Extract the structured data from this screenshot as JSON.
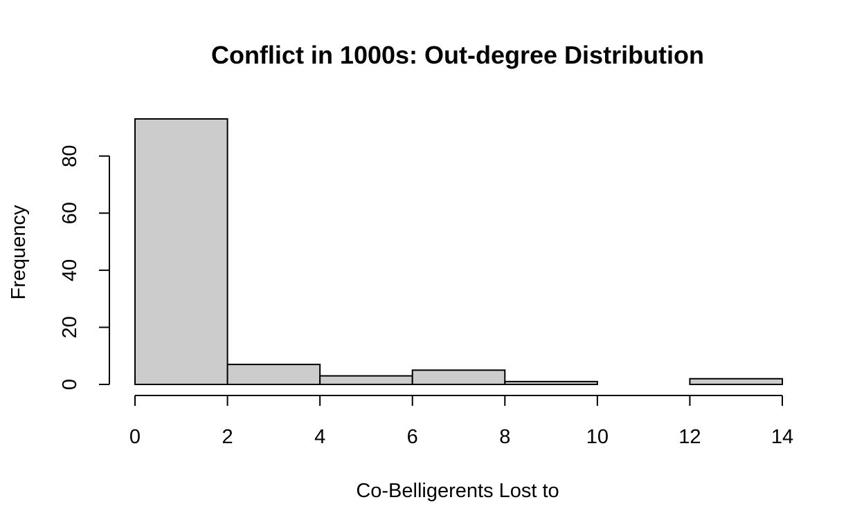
{
  "chart_data": {
    "type": "bar",
    "title": "Conflict in 1000s: Out-degree Distribution",
    "xlabel": "Co-Belligerents Lost to",
    "ylabel": "Frequency",
    "bins": [
      {
        "from": 0,
        "to": 2,
        "count": 93
      },
      {
        "from": 2,
        "to": 4,
        "count": 7
      },
      {
        "from": 4,
        "to": 6,
        "count": 3
      },
      {
        "from": 6,
        "to": 8,
        "count": 5
      },
      {
        "from": 8,
        "to": 10,
        "count": 1
      },
      {
        "from": 10,
        "to": 12,
        "count": 0
      },
      {
        "from": 12,
        "to": 14,
        "count": 2
      }
    ],
    "xlim": [
      0,
      14
    ],
    "ylim": [
      0,
      93
    ],
    "x_ticks": [
      "0",
      "2",
      "4",
      "6",
      "8",
      "10",
      "12",
      "14"
    ],
    "y_ticks": [
      "0",
      "20",
      "40",
      "60",
      "80"
    ],
    "bar_fill": "#cccccc",
    "bar_stroke": "#000000",
    "grid": false,
    "legend": "none"
  }
}
